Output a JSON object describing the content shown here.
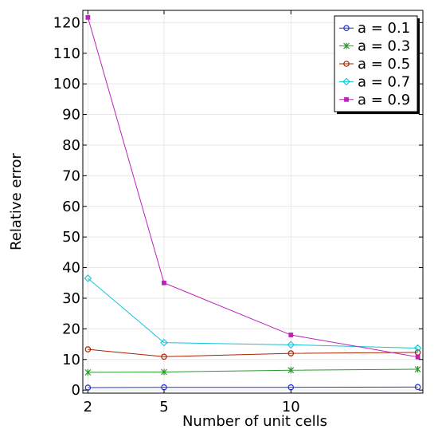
{
  "chart_data": {
    "type": "line",
    "title": "",
    "xlabel": "Number of unit cells",
    "ylabel": "Relative error",
    "x": [
      2,
      5,
      10,
      15
    ],
    "x_ticks": [
      "2",
      "5",
      "10"
    ],
    "xlim": [
      1.8,
      15.2
    ],
    "ylim": [
      -1,
      124
    ],
    "y_ticks": [
      "0",
      "10",
      "20",
      "30",
      "40",
      "50",
      "60",
      "70",
      "80",
      "90",
      "100",
      "110",
      "120"
    ],
    "grid": true,
    "legend_position": "top-right",
    "series": [
      {
        "name": "a = 0.1",
        "color": "#2233cc",
        "marker": "circle",
        "values": [
          0.8,
          0.9,
          0.9,
          1.0
        ]
      },
      {
        "name": "a = 0.3",
        "color": "#2a9a2a",
        "marker": "asterisk",
        "values": [
          5.8,
          5.9,
          6.5,
          6.8
        ]
      },
      {
        "name": "a = 0.5",
        "color": "#aa2200",
        "marker": "circle",
        "values": [
          13.3,
          10.9,
          12.0,
          12.3
        ]
      },
      {
        "name": "a = 0.7",
        "color": "#11c4d8",
        "marker": "diamond",
        "values": [
          36.5,
          15.5,
          14.8,
          13.7
        ]
      },
      {
        "name": "a = 0.9",
        "color": "#bb22bb",
        "marker": "square",
        "values": [
          121.7,
          35.0,
          18.0,
          10.8
        ]
      }
    ]
  }
}
